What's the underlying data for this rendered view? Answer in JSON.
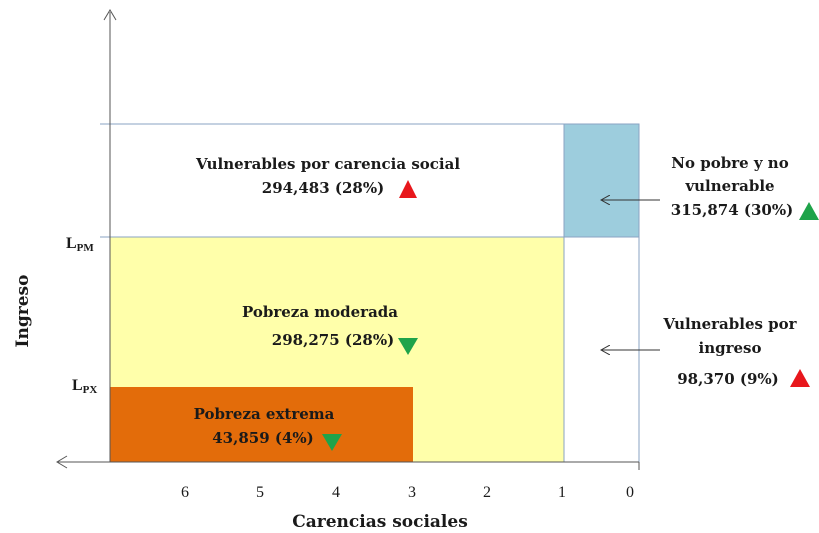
{
  "diagram": {
    "x_axis_title": "Carencias sociales",
    "y_axis_title": "Ingreso",
    "x_ticks": [
      "6",
      "5",
      "4",
      "3",
      "2",
      "1",
      "0"
    ],
    "income_lines": {
      "lpm": {
        "main": "L",
        "sub": "PM"
      },
      "lpx": {
        "main": "L",
        "sub": "PX"
      }
    },
    "colors": {
      "no_pobre": "#9dcddd",
      "pobreza_moderada": "#ffffaa",
      "pobreza_extrema": "#e36c0a",
      "trend_up": "#e8171c",
      "trend_down": "#1fa34a",
      "box_border": "#8aa3c3"
    },
    "groups": {
      "vulnerables_carencia": {
        "name": "Vulnerables por carencia social",
        "value": "294,483 (28%)",
        "trend": "up"
      },
      "no_pobre": {
        "name_line1": "No pobre y no",
        "name_line2": "vulnerable",
        "value": "315,874 (30%)",
        "trend": "up"
      },
      "pobreza_moderada": {
        "name": "Pobreza moderada",
        "value": "298,275 (28%)",
        "trend": "down"
      },
      "vulnerables_ingreso": {
        "name_line1": "Vulnerables por",
        "name_line2": "ingreso",
        "value": "98,370 (9%)",
        "trend": "up"
      },
      "pobreza_extrema": {
        "name": "Pobreza extrema",
        "value": "43,859 (4%)",
        "trend": "down"
      }
    }
  }
}
